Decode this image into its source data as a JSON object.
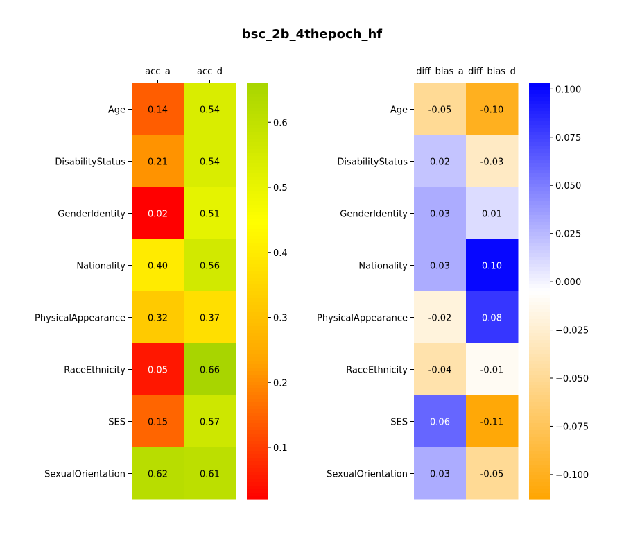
{
  "chart_data": {
    "type": "heatmap",
    "title": "bsc_2b_4thepoch_hf",
    "rows": [
      "Age",
      "DisabilityStatus",
      "GenderIdentity",
      "Nationality",
      "PhysicalAppearance",
      "RaceEthnicity",
      "SES",
      "SexualOrientation"
    ],
    "panels": [
      {
        "columns": [
          "acc_a",
          "acc_d"
        ],
        "values": [
          [
            0.14,
            0.54
          ],
          [
            0.21,
            0.54
          ],
          [
            0.02,
            0.51
          ],
          [
            0.4,
            0.56
          ],
          [
            0.32,
            0.37
          ],
          [
            0.05,
            0.66
          ],
          [
            0.15,
            0.57
          ],
          [
            0.62,
            0.61
          ]
        ],
        "cell_labels": [
          [
            "0.14",
            "0.54"
          ],
          [
            "0.21",
            "0.54"
          ],
          [
            "0.02",
            "0.51"
          ],
          [
            "0.40",
            "0.56"
          ],
          [
            "0.32",
            "0.37"
          ],
          [
            "0.05",
            "0.66"
          ],
          [
            "0.15",
            "0.57"
          ],
          [
            "0.62",
            "0.61"
          ]
        ],
        "colormap": [
          "#ff0000",
          "#ffa500",
          "#ffff00",
          "#a8d500"
        ],
        "vmin": 0.02,
        "vmax": 0.66,
        "colorbar_ticks": [
          0.1,
          0.2,
          0.3,
          0.4,
          0.5,
          0.6
        ],
        "colorbar_tick_labels": [
          "0.1",
          "0.2",
          "0.3",
          "0.4",
          "0.5",
          "0.6"
        ]
      },
      {
        "columns": [
          "diff_bias_a",
          "diff_bias_d"
        ],
        "values": [
          [
            -0.05,
            -0.1
          ],
          [
            0.02,
            -0.03
          ],
          [
            0.03,
            0.01
          ],
          [
            0.03,
            0.1
          ],
          [
            -0.02,
            0.08
          ],
          [
            -0.04,
            -0.01
          ],
          [
            0.06,
            -0.11
          ],
          [
            0.03,
            -0.05
          ]
        ],
        "cell_labels": [
          [
            "-0.05",
            "-0.10"
          ],
          [
            "0.02",
            "-0.03"
          ],
          [
            "0.03",
            "0.01"
          ],
          [
            "0.03",
            "0.10"
          ],
          [
            "-0.02",
            "0.08"
          ],
          [
            "-0.04",
            "-0.01"
          ],
          [
            "0.06",
            "-0.11"
          ],
          [
            "0.03",
            "-0.05"
          ]
        ],
        "colormap": [
          "#ffa500",
          "#ffffff",
          "#0000ff"
        ],
        "vmin": -0.113,
        "vmax": 0.103,
        "colorbar_ticks": [
          -0.1,
          -0.075,
          -0.05,
          -0.025,
          0.0,
          0.025,
          0.05,
          0.075,
          0.1
        ],
        "colorbar_tick_labels": [
          "−0.100",
          "−0.075",
          "−0.050",
          "−0.025",
          "0.000",
          "0.025",
          "0.050",
          "0.075",
          "0.100"
        ]
      }
    ]
  }
}
